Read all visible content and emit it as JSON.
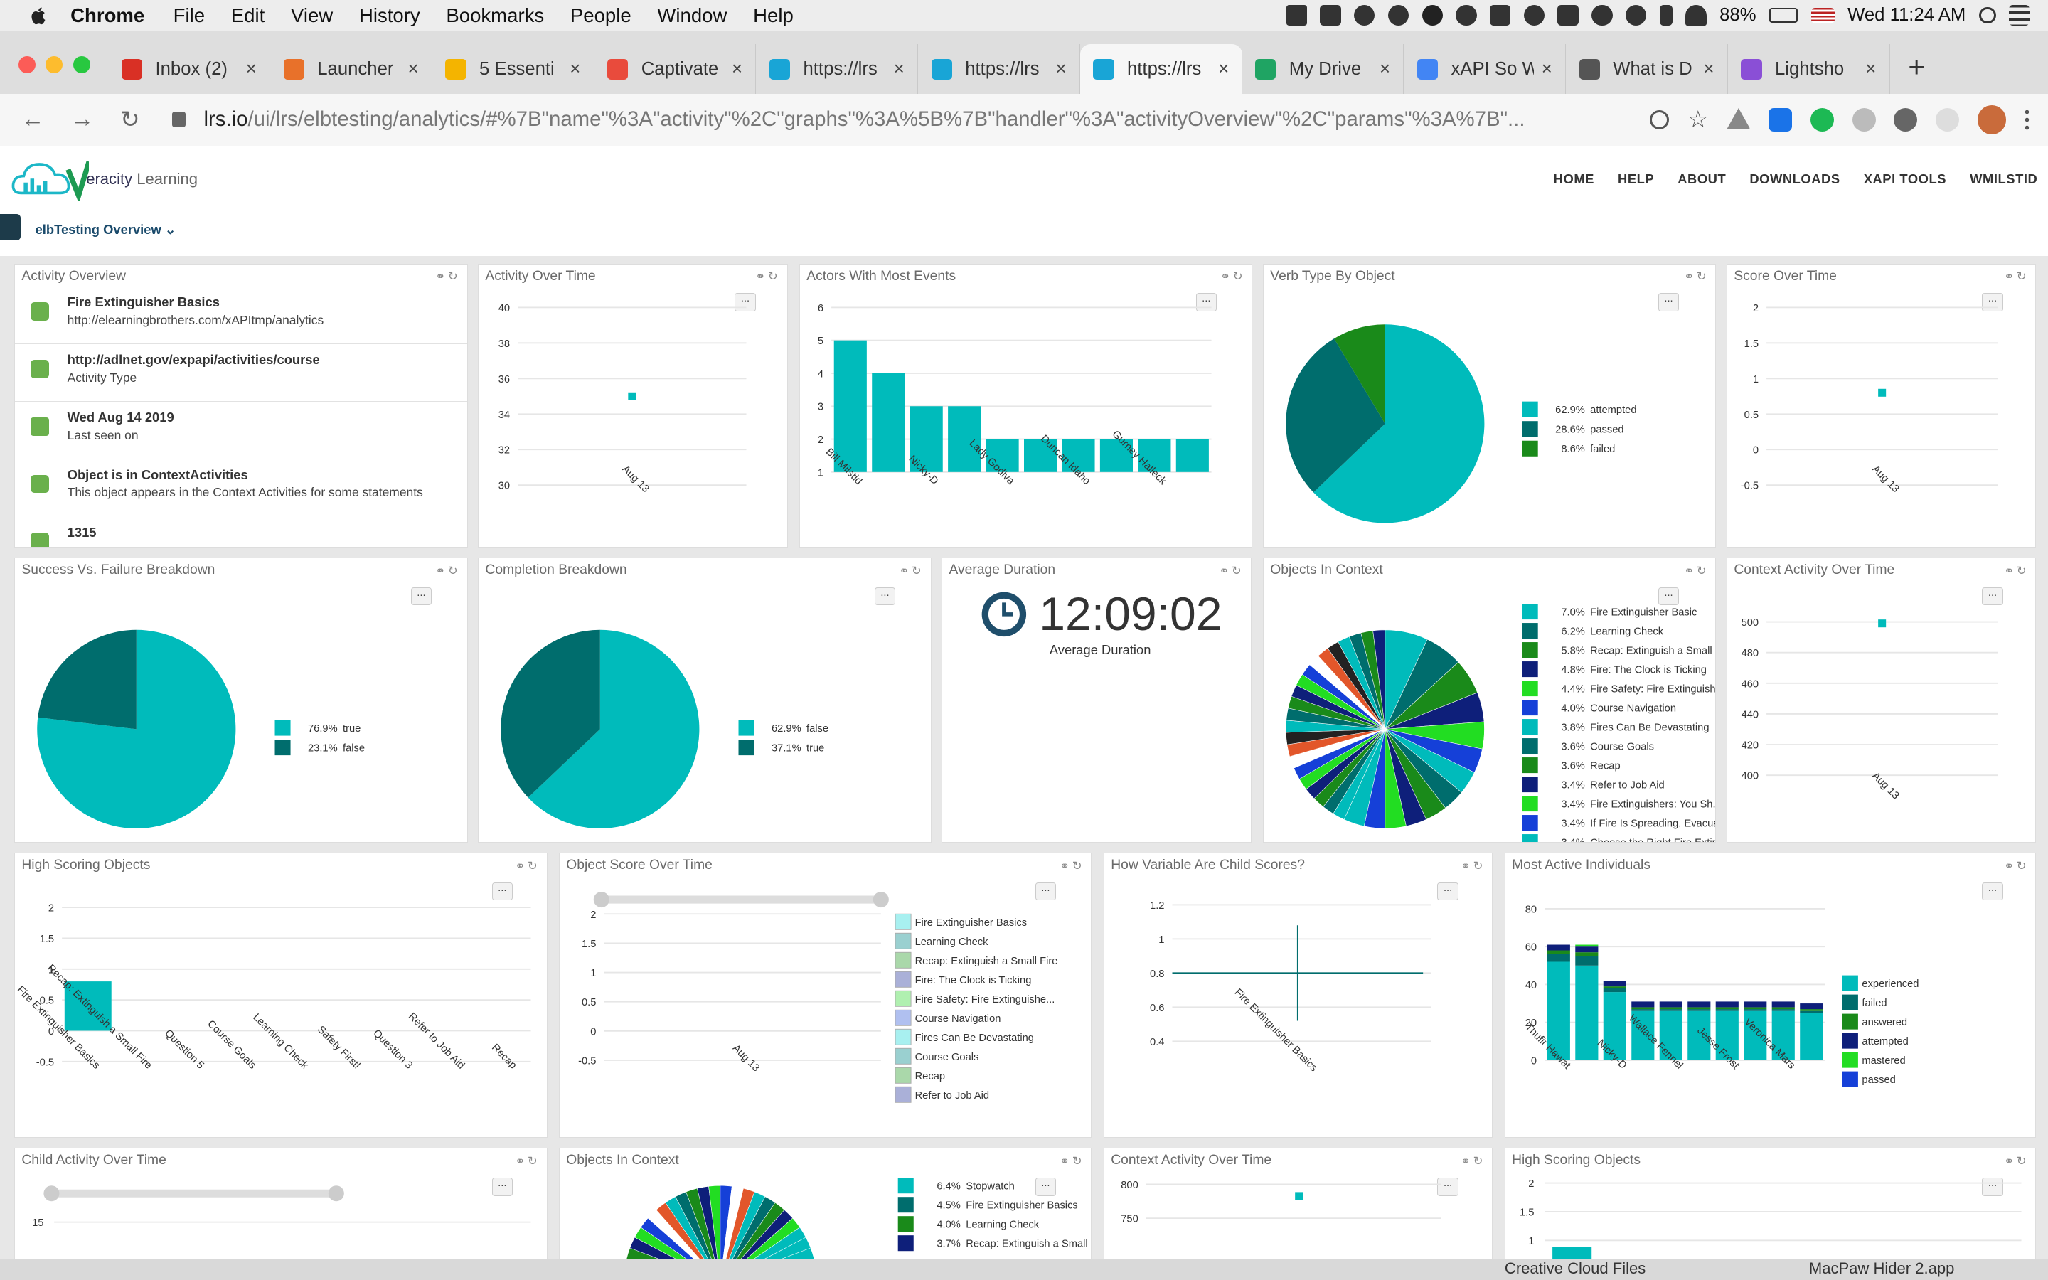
{
  "menubar": {
    "app": "Chrome",
    "items": [
      "File",
      "Edit",
      "View",
      "History",
      "Bookmarks",
      "People",
      "Window",
      "Help"
    ],
    "battery": "88%",
    "clock": "Wed 11:24 AM"
  },
  "tabs": [
    {
      "label": "Inbox (2)",
      "color": "#d93025"
    },
    {
      "label": "Launcher",
      "color": "#e8712a"
    },
    {
      "label": "5 Essenti",
      "color": "#f4b400"
    },
    {
      "label": "Captivate",
      "color": "#e94b3c"
    },
    {
      "label": "https://lrs",
      "color": "#19a5d6"
    },
    {
      "label": "https://lrs",
      "color": "#19a5d6"
    },
    {
      "label": "https://lrs",
      "color": "#19a5d6"
    },
    {
      "label": "My Drive",
      "color": "#1fa463"
    },
    {
      "label": "xAPI So W",
      "color": "#4285f4"
    },
    {
      "label": "What is D",
      "color": "#555555"
    },
    {
      "label": "Lightsho",
      "color": "#8a4fd6"
    }
  ],
  "address": {
    "host": "lrs.io",
    "path": "/ui/lrs/elbtesting/analytics/#%7B\"name\"%3A\"activity\"%2C\"graphs\"%3A%5B%7B\"handler\"%3A\"activityOverview\"%2C\"params\"%3A%7B\"..."
  },
  "brand": {
    "name": "eracity",
    "suffix": "Learning"
  },
  "topnav": [
    "HOME",
    "HELP",
    "ABOUT",
    "DOWNLOADS",
    "XAPI TOOLS",
    "WMILSTID"
  ],
  "dashboard": "elbTesting Overview",
  "colors": {
    "teal": "#00bbbb",
    "dark_teal": "#006d6d",
    "green": "#1a8a1a",
    "navy": "#0e1f7a",
    "lime": "#22dd22",
    "blue": "#1540d8",
    "orange": "#e2562a"
  },
  "panels": {
    "activity_overview": {
      "title": "Activity Overview",
      "items": [
        {
          "t1": "Fire Extinguisher Basics",
          "t2": "http://elearningbrothers.com/xAPItmp/analytics",
          "icon": "tag-icon"
        },
        {
          "t1": "http://adlnet.gov/expapi/activities/course",
          "t2": "Activity Type",
          "icon": "document-icon"
        },
        {
          "t1": "Wed Aug 14 2019",
          "t2": "Last seen on",
          "icon": "calendar-icon"
        },
        {
          "t1": "Object is in ContextActivities",
          "t2": "This object appears in the Context Activities for some statements",
          "icon": "branch-icon"
        },
        {
          "t1": "1315",
          "t2": "",
          "icon": "chart-icon"
        }
      ]
    },
    "activity_over_time": {
      "title": "Activity Over Time"
    },
    "actors": {
      "title": "Actors With Most Events"
    },
    "verb_type": {
      "title": "Verb Type By Object"
    },
    "score_over_time": {
      "title": "Score Over Time"
    },
    "success": {
      "title": "Success Vs. Failure Breakdown"
    },
    "completion": {
      "title": "Completion Breakdown"
    },
    "avg_duration": {
      "title": "Average Duration",
      "value": "12:09:02",
      "label": "Average Duration"
    },
    "objects_context": {
      "title": "Objects In Context"
    },
    "context_activity": {
      "title": "Context Activity Over Time"
    },
    "high_scoring": {
      "title": "High Scoring Objects"
    },
    "object_score": {
      "title": "Object Score Over Time"
    },
    "variable": {
      "title": "How Variable Are Child Scores?"
    },
    "most_active": {
      "title": "Most Active Individuals"
    },
    "child_activity": {
      "title": "Child Activity Over Time"
    },
    "objects_context2": {
      "title": "Objects In Context"
    },
    "context_activity2": {
      "title": "Context Activity Over Time"
    },
    "high_scoring2": {
      "title": "High Scoring Objects"
    }
  },
  "chart_data": [
    {
      "id": "activity_over_time",
      "type": "scatter",
      "y_ticks": [
        30,
        32,
        34,
        36,
        38,
        40
      ],
      "ylim": [
        30,
        40
      ],
      "categories": [
        "Aug 13"
      ],
      "values": [
        35
      ]
    },
    {
      "id": "actors",
      "type": "bar",
      "y_ticks": [
        1,
        2,
        3,
        4,
        5,
        6
      ],
      "ylim": [
        1,
        6
      ],
      "categories": [
        "Bill Milstid",
        "",
        "Nicky-D",
        "",
        "Lady Godiva",
        "",
        "Duncan Idaho",
        "",
        "Gurney Halleck",
        ""
      ],
      "values": [
        5,
        4,
        3,
        3,
        2,
        2,
        2,
        2,
        2,
        2
      ]
    },
    {
      "id": "verb_type",
      "type": "pie",
      "legend": [
        {
          "label": "attempted",
          "pct": "62.9%",
          "value": 62.9,
          "color": "#00bbbb"
        },
        {
          "label": "passed",
          "pct": "28.6%",
          "value": 28.6,
          "color": "#006d6d"
        },
        {
          "label": "failed",
          "pct": "8.6%",
          "value": 8.6,
          "color": "#1a8a1a"
        }
      ]
    },
    {
      "id": "score_over_time",
      "type": "scatter",
      "y_ticks": [
        -0.5,
        0,
        0.5,
        1,
        1.5,
        2
      ],
      "ylim": [
        -0.5,
        2
      ],
      "categories": [
        "Aug 13"
      ],
      "values": [
        0.8
      ]
    },
    {
      "id": "success",
      "type": "pie",
      "legend": [
        {
          "label": "true",
          "pct": "76.9%",
          "value": 76.9,
          "color": "#00bbbb"
        },
        {
          "label": "false",
          "pct": "23.1%",
          "value": 23.1,
          "color": "#006d6d"
        }
      ]
    },
    {
      "id": "completion",
      "type": "pie",
      "legend": [
        {
          "label": "false",
          "pct": "62.9%",
          "value": 62.9,
          "color": "#00bbbb"
        },
        {
          "label": "true",
          "pct": "37.1%",
          "value": 37.1,
          "color": "#006d6d"
        }
      ]
    },
    {
      "id": "objects_context",
      "type": "pie",
      "legend": [
        {
          "label": "Fire Extinguisher Basic",
          "pct": "7.0%",
          "value": 7.0,
          "color": "#00bbbb"
        },
        {
          "label": "Learning Check",
          "pct": "6.2%",
          "value": 6.2,
          "color": "#006d6d"
        },
        {
          "label": "Recap: Extinguish a Small Fir",
          "pct": "5.8%",
          "value": 5.8,
          "color": "#1a8a1a"
        },
        {
          "label": "Fire: The Clock is Ticking",
          "pct": "4.8%",
          "value": 4.8,
          "color": "#0e1f7a"
        },
        {
          "label": "Fire Safety: Fire Extinguishe..",
          "pct": "4.4%",
          "value": 4.4,
          "color": "#22dd22"
        },
        {
          "label": "Course Navigation",
          "pct": "4.0%",
          "value": 4.0,
          "color": "#1540d8"
        },
        {
          "label": "Fires Can Be Devastating",
          "pct": "3.8%",
          "value": 3.8,
          "color": "#00bbbb"
        },
        {
          "label": "Course Goals",
          "pct": "3.6%",
          "value": 3.6,
          "color": "#006d6d"
        },
        {
          "label": "Recap",
          "pct": "3.6%",
          "value": 3.6,
          "color": "#1a8a1a"
        },
        {
          "label": "Refer to Job Aid",
          "pct": "3.4%",
          "value": 3.4,
          "color": "#0e1f7a"
        },
        {
          "label": "Fire Extinguishers: You Sh..",
          "pct": "3.4%",
          "value": 3.4,
          "color": "#22dd22"
        },
        {
          "label": "If Fire Is Spreading, Evacuate",
          "pct": "3.4%",
          "value": 3.4,
          "color": "#1540d8"
        },
        {
          "label": "Choose the Right Fire Extin..",
          "pct": "3.4%",
          "value": 3.4,
          "color": "#00bbbb"
        }
      ]
    },
    {
      "id": "context_activity",
      "type": "scatter",
      "y_ticks": [
        400,
        420,
        440,
        460,
        480,
        500
      ],
      "ylim": [
        390,
        505
      ],
      "categories": [
        "Aug 13"
      ],
      "values": [
        499
      ]
    },
    {
      "id": "high_scoring",
      "type": "bar",
      "y_ticks": [
        -0.5,
        0,
        0.5,
        1,
        1.5,
        2
      ],
      "ylim": [
        -0.5,
        2
      ],
      "categories": [
        "Fire Extinguisher Basics",
        "Recap: Extinguish a Small Fire",
        "Question 5",
        "Course Goals",
        "Learning Check",
        "Safety First!",
        "Question 3",
        "Refer to Job Aid",
        "Recap"
      ],
      "values": [
        0.8,
        0,
        0,
        0,
        0,
        0,
        0,
        0,
        0
      ]
    },
    {
      "id": "object_score",
      "type": "line",
      "y_ticks": [
        -0.5,
        0,
        0.5,
        1,
        1.5,
        2
      ],
      "ylim": [
        -0.5,
        2
      ],
      "categories": [
        "Aug 13"
      ],
      "legend": [
        "Fire Extinguisher Basics",
        "Learning Check",
        "Recap: Extinguish a Small Fire",
        "Fire: The Clock is Ticking",
        "Fire Safety: Fire Extinguishe...",
        "Course Navigation",
        "Fires Can Be Devastating",
        "Course Goals",
        "Recap",
        "Refer to Job Aid"
      ]
    },
    {
      "id": "variable",
      "type": "scatter",
      "y_ticks": [
        0.4,
        0.6,
        0.8,
        1,
        1.2
      ],
      "ylim": [
        0.35,
        1.2
      ],
      "categories": [
        "Fire Extinguisher Basics"
      ],
      "values": [
        0.8
      ]
    },
    {
      "id": "most_active",
      "type": "bar",
      "y_ticks": [
        0,
        20,
        40,
        60,
        80
      ],
      "ylim": [
        0,
        80
      ],
      "categories": [
        "Thufir Hawat",
        "",
        "Nicky-D",
        "",
        "Wallace Fennel",
        "",
        "Jesse Frost",
        "",
        "Veronica Mars",
        ""
      ],
      "series": [
        {
          "name": "experienced",
          "color": "#00bbbb",
          "values": [
            52,
            50,
            36,
            26,
            26,
            26,
            26,
            26,
            26,
            25
          ]
        },
        {
          "name": "failed",
          "color": "#006d6d",
          "values": [
            4,
            5,
            2,
            1,
            1,
            1,
            1,
            1,
            1,
            1
          ]
        },
        {
          "name": "answered",
          "color": "#1a8a1a",
          "values": [
            2,
            2,
            1,
            1,
            1,
            1,
            1,
            1,
            1,
            1
          ]
        },
        {
          "name": "attempted",
          "color": "#0e1f7a",
          "values": [
            3,
            3,
            3,
            3,
            3,
            3,
            3,
            3,
            3,
            3
          ]
        },
        {
          "name": "mastered",
          "color": "#22dd22",
          "values": [
            0,
            1,
            0,
            0,
            0,
            0,
            0,
            0,
            0,
            0
          ]
        },
        {
          "name": "passed",
          "color": "#1540d8",
          "values": [
            0,
            0,
            0,
            0,
            0,
            0,
            0,
            0,
            0,
            0
          ]
        }
      ]
    },
    {
      "id": "child_activity",
      "type": "line",
      "y_ticks": [
        15
      ],
      "ylim": [
        0,
        20
      ]
    },
    {
      "id": "objects_context2",
      "type": "pie",
      "legend": [
        {
          "label": "Stopwatch",
          "pct": "6.4%",
          "value": 6.4,
          "color": "#00bbbb"
        },
        {
          "label": "Fire Extinguisher Basics",
          "pct": "4.5%",
          "value": 4.5,
          "color": "#006d6d"
        },
        {
          "label": "Learning Check",
          "pct": "4.0%",
          "value": 4.0,
          "color": "#1a8a1a"
        },
        {
          "label": "Recap: Extinguish a Small Fire",
          "pct": "3.7%",
          "value": 3.7,
          "color": "#0e1f7a"
        }
      ]
    },
    {
      "id": "context_activity2",
      "type": "scatter",
      "y_ticks": [
        750,
        800
      ],
      "ylim": [
        700,
        820
      ],
      "values": [
        790
      ]
    },
    {
      "id": "high_scoring2",
      "type": "bar",
      "y_ticks": [
        1,
        1.5,
        2
      ],
      "ylim": [
        0.5,
        2
      ],
      "values": [
        0.8
      ]
    }
  ],
  "dock": {
    "items": [
      "Creative Cloud Files",
      "MacPaw Hider 2.app"
    ]
  }
}
